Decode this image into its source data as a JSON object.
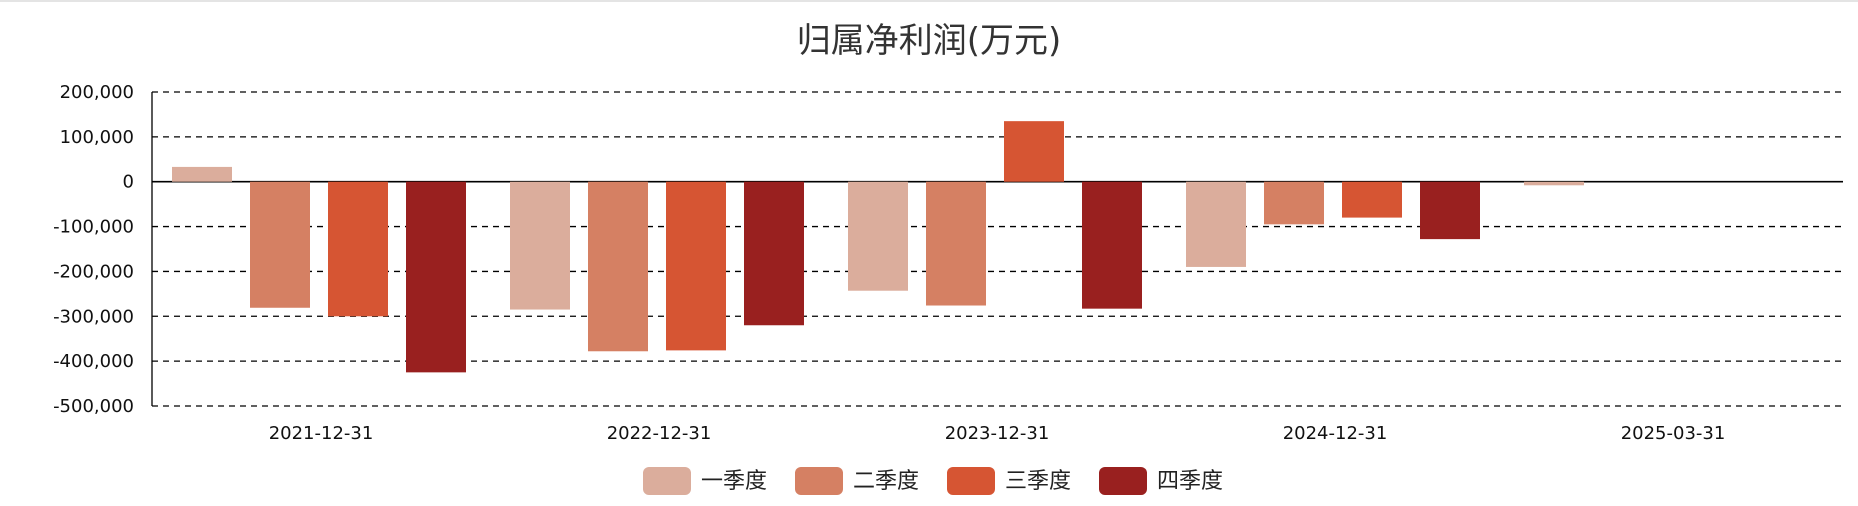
{
  "chart_data": {
    "type": "bar",
    "title": "归属净利润(万元)",
    "categories": [
      "2021-12-31",
      "2022-12-31",
      "2023-12-31",
      "2024-12-31",
      "2025-03-31"
    ],
    "series": [
      {
        "name": "一季度",
        "color": "#dbad9c",
        "values": [
          33000,
          -285000,
          -243000,
          -190000,
          -8000
        ]
      },
      {
        "name": "二季度",
        "color": "#d58063",
        "values": [
          -281000,
          -378000,
          -276000,
          -95000,
          null
        ]
      },
      {
        "name": "三季度",
        "color": "#d65533",
        "values": [
          -300000,
          -376000,
          135000,
          -80000,
          null
        ]
      },
      {
        "name": "四季度",
        "color": "#99201f",
        "values": [
          -425000,
          -320000,
          -283000,
          -128000,
          null
        ]
      }
    ],
    "ylim": [
      -500000,
      200000
    ],
    "yticks": [
      200000,
      100000,
      0,
      -100000,
      -200000,
      -300000,
      -400000,
      -500000
    ],
    "ytick_labels": [
      "200,000",
      "100,000",
      "0",
      "-100,000",
      "-200,000",
      "-300,000",
      "-400,000",
      "-500,000"
    ],
    "grid": true,
    "legend_position": "bottom-center"
  }
}
